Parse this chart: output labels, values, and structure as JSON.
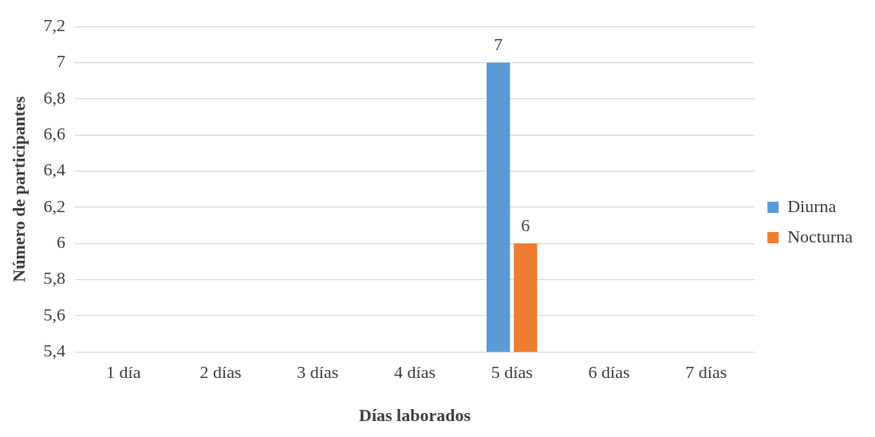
{
  "chart_data": {
    "type": "bar",
    "xlabel": "Días laborados",
    "ylabel": "Número de participantes",
    "categories": [
      "1 día",
      "2 días",
      "3 días",
      "4 días",
      "5 días",
      "6 días",
      "7 días"
    ],
    "series": [
      {
        "name": "Diurna",
        "color": "#5b9bd5",
        "values": [
          null,
          null,
          null,
          null,
          7,
          null,
          null
        ]
      },
      {
        "name": "Nocturna",
        "color": "#ed7d31",
        "values": [
          null,
          null,
          null,
          null,
          6,
          null,
          null
        ]
      }
    ],
    "ylim": [
      5.4,
      7.2
    ],
    "yticks": [
      {
        "value": 5.4,
        "label": "5,4"
      },
      {
        "value": 5.6,
        "label": "5,6"
      },
      {
        "value": 5.8,
        "label": "5,8"
      },
      6,
      {
        "value": 6.2,
        "label": "6,2"
      },
      {
        "value": 6.4,
        "label": "6,4"
      },
      {
        "value": 6.6,
        "label": "6,6"
      },
      {
        "value": 6.8,
        "label": "6,8"
      },
      7,
      {
        "value": 7.2,
        "label": "7,2"
      }
    ],
    "grid": "y",
    "legend": "right",
    "data_labels": true
  }
}
